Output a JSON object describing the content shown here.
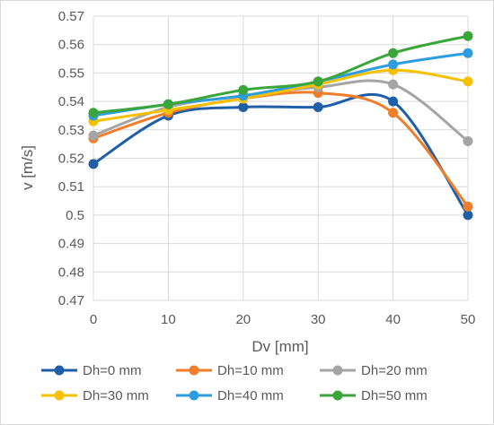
{
  "chart_data": {
    "type": "line",
    "title": "",
    "xlabel": "Dv [mm]",
    "ylabel": "v [m/s]",
    "x": [
      0,
      10,
      20,
      30,
      40,
      50
    ],
    "xticks": [
      "0",
      "10",
      "20",
      "30",
      "40",
      "50"
    ],
    "xlim": [
      0,
      50
    ],
    "ylim": [
      0.47,
      0.57
    ],
    "yticks": [
      "0.47",
      "0.48",
      "0.49",
      "0.5",
      "0.51",
      "0.52",
      "0.53",
      "0.54",
      "0.55",
      "0.56",
      "0.57"
    ],
    "grid": true,
    "legend_position": "bottom",
    "series": [
      {
        "name": "Dh=0 mm",
        "color": "#1f5fa8",
        "values": [
          0.518,
          0.535,
          0.538,
          0.538,
          0.54,
          0.5
        ]
      },
      {
        "name": "Dh=10 mm",
        "color": "#f07d29",
        "values": [
          0.527,
          0.536,
          0.541,
          0.543,
          0.536,
          0.503
        ]
      },
      {
        "name": "Dh=20 mm",
        "color": "#a5a5a5",
        "values": [
          0.528,
          0.538,
          0.542,
          0.545,
          0.546,
          0.526
        ]
      },
      {
        "name": "Dh=30 mm",
        "color": "#f5c000",
        "values": [
          0.533,
          0.537,
          0.541,
          0.546,
          0.551,
          0.547
        ]
      },
      {
        "name": "Dh=40 mm",
        "color": "#2e9de0",
        "values": [
          0.535,
          0.539,
          0.542,
          0.547,
          0.553,
          0.557
        ]
      },
      {
        "name": "Dh=50 mm",
        "color": "#3aa63a",
        "values": [
          0.536,
          0.539,
          0.544,
          0.547,
          0.557,
          0.563
        ]
      }
    ]
  }
}
